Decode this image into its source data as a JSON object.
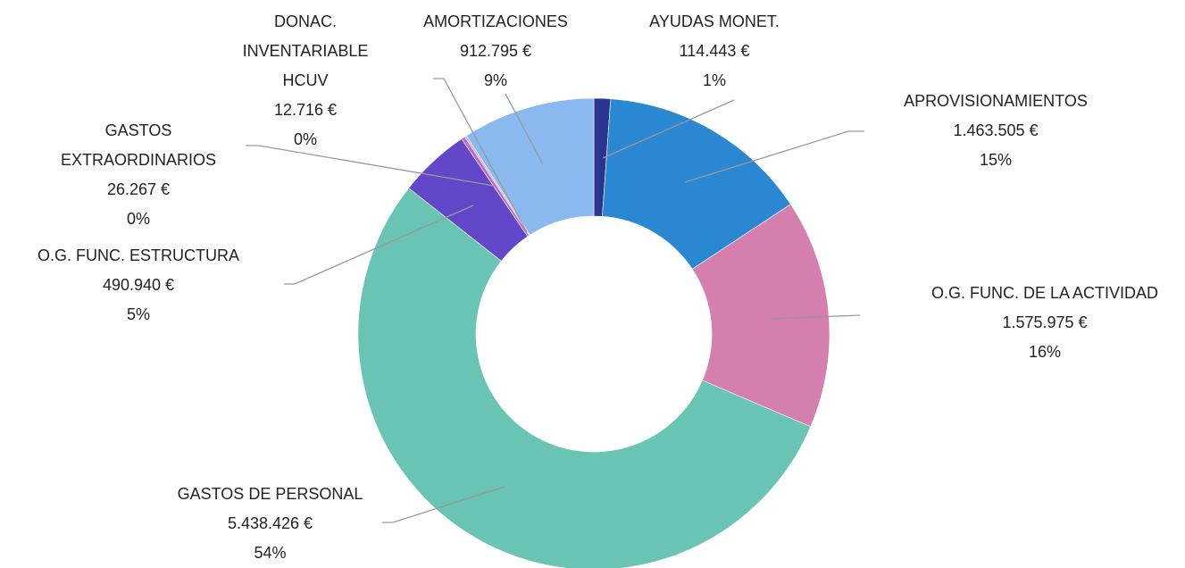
{
  "chart_data": {
    "type": "donut",
    "categories": [
      "AYUDAS MONET.",
      "APROVISIONAMIENTOS",
      "O.G. FUNC. DE LA ACTIVIDAD",
      "GASTOS DE PERSONAL",
      "O.G. FUNC. ESTRUCTURA",
      "GASTOS EXTRAORDINARIOS",
      "DONAC. INVENTARIABLE HCUV",
      "AMORTIZACIONES"
    ],
    "values": [
      114443,
      1463505,
      1575975,
      5438426,
      490940,
      26267,
      12716,
      912795
    ],
    "value_labels": [
      "114.443 €",
      "1.463.505 €",
      "1.575.975 €",
      "5.438.426 €",
      "490.940 €",
      "26.267 €",
      "12.716 €",
      "912.795 €"
    ],
    "percent_labels": [
      "1%",
      "15%",
      "16%",
      "54%",
      "5%",
      "0%",
      "0%",
      "9%"
    ],
    "colors": [
      "#2b3590",
      "#2a88d2",
      "#d47fae",
      "#6ac4b4",
      "#6247c8",
      "#c36ad2",
      "#b8b8d8",
      "#8ab9f0"
    ]
  }
}
